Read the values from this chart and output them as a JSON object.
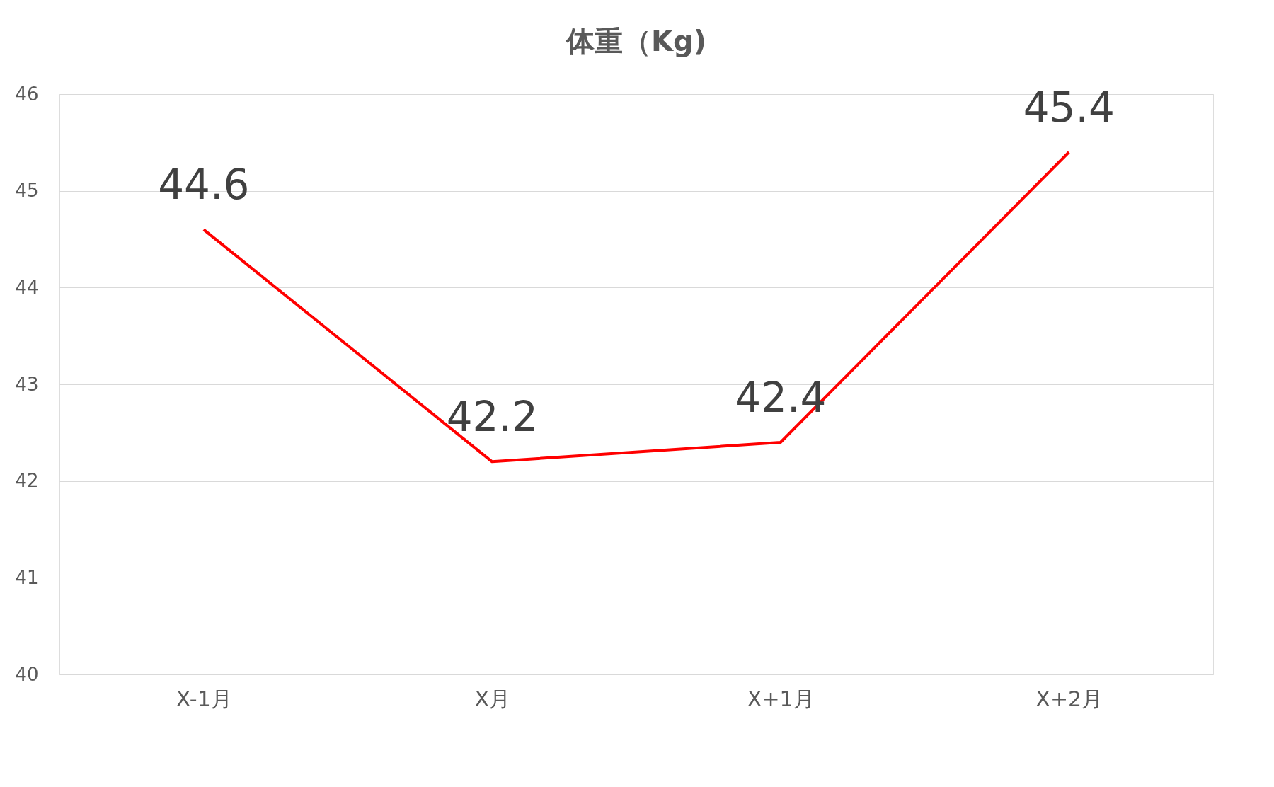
{
  "chart_data": {
    "type": "line",
    "title": "体重（Kg)",
    "categories": [
      "X-1月",
      "X月",
      "X+1月",
      "X+2月"
    ],
    "series": [
      {
        "color": "#ff0000",
        "values": [
          44.6,
          42.2,
          42.4,
          45.4
        ]
      }
    ],
    "ylim": [
      40,
      46
    ],
    "yticks": [
      40,
      41,
      42,
      43,
      44,
      45,
      46
    ],
    "grid": "y",
    "data_labels": true,
    "marker": "none",
    "line_style": "solid",
    "legend": false
  }
}
